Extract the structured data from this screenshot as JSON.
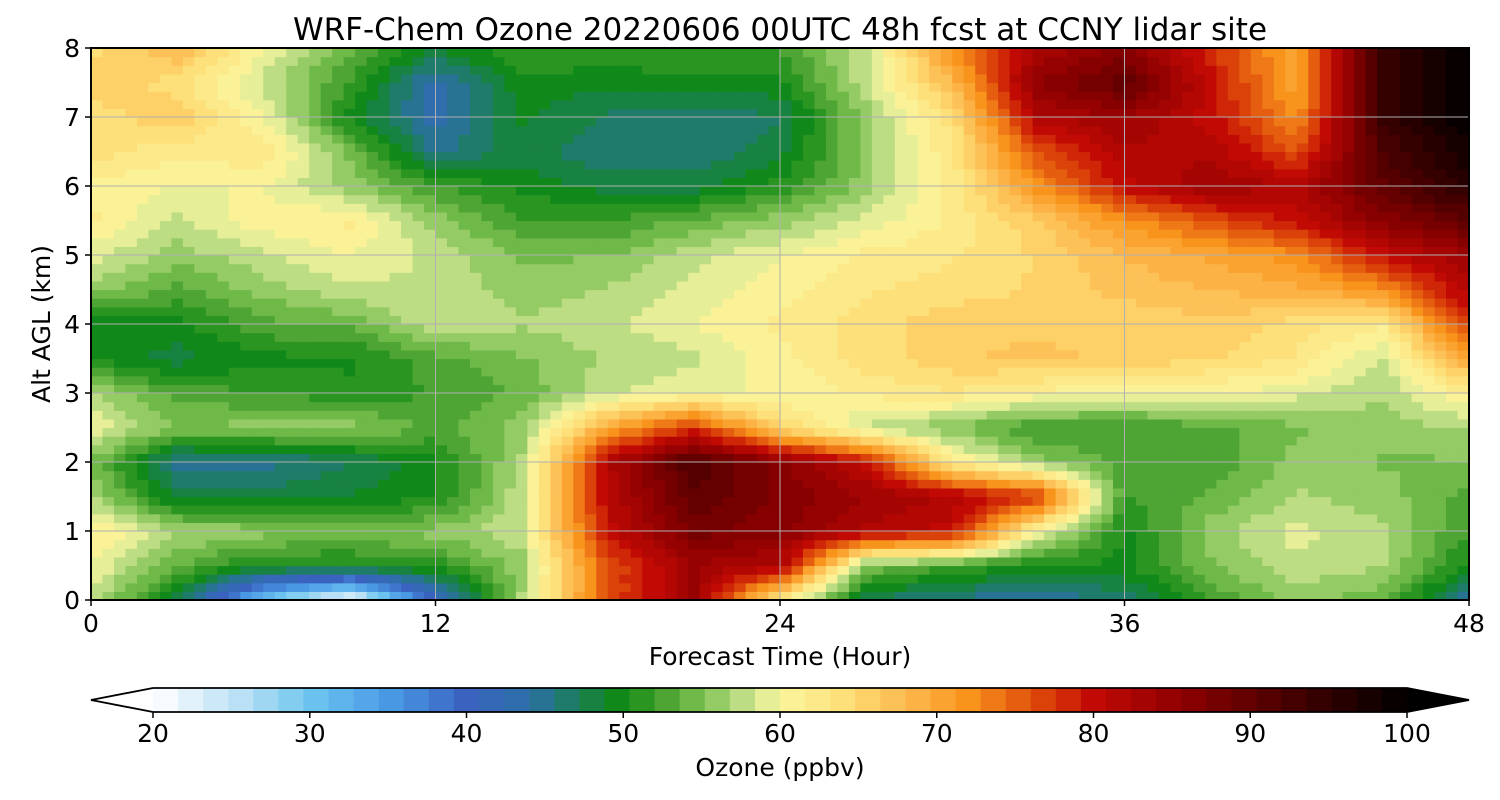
{
  "chart_data": {
    "type": "heatmap",
    "title": "WRF-Chem Ozone  20220606 00UTC 48h fcst at CCNY lidar site",
    "xlabel": "Forecast Time (Hour)",
    "ylabel": "Alt AGL (km)",
    "xlim": [
      0,
      48
    ],
    "ylim": [
      0,
      8
    ],
    "xticks": [
      0,
      12,
      24,
      36,
      48
    ],
    "yticks": [
      0,
      1,
      2,
      3,
      4,
      5,
      6,
      7,
      8
    ],
    "grid": true,
    "x": [
      0,
      3,
      6,
      9,
      12,
      15,
      18,
      21,
      24,
      27,
      30,
      33,
      36,
      39,
      42,
      45,
      48
    ],
    "y": [
      0,
      0.5,
      1,
      1.5,
      2,
      2.5,
      3,
      3.5,
      4,
      4.5,
      5,
      5.5,
      6,
      6.5,
      7,
      7.5,
      8
    ],
    "z": [
      [
        58,
        48,
        30,
        20,
        40,
        57,
        76,
        84,
        62,
        47,
        45,
        44,
        46,
        52,
        56,
        54,
        44
      ],
      [
        60,
        54,
        50,
        50,
        51,
        56,
        76,
        84,
        82,
        55,
        52,
        50,
        50,
        55,
        58,
        57,
        50
      ],
      [
        62,
        57,
        56,
        55,
        56,
        58,
        80,
        88,
        86,
        82,
        80,
        60,
        50,
        56,
        59,
        57,
        52
      ],
      [
        57,
        48,
        48,
        49,
        50,
        58,
        81,
        90,
        87,
        84,
        82,
        78,
        52,
        54,
        57,
        56,
        53
      ],
      [
        55,
        45,
        45,
        47,
        50,
        57,
        82,
        92,
        86,
        80,
        62,
        56,
        53,
        52,
        56,
        55,
        55
      ],
      [
        60,
        55,
        56,
        56,
        53,
        56,
        70,
        78,
        65,
        58,
        55,
        52,
        52,
        53,
        55,
        56,
        57
      ],
      [
        57,
        53,
        52,
        51,
        52,
        54,
        58,
        60,
        60,
        62,
        63,
        61,
        60,
        60,
        59,
        57,
        62
      ],
      [
        50,
        48,
        50,
        50,
        53,
        55,
        57,
        58,
        61,
        64,
        66,
        67,
        66,
        65,
        63,
        58,
        70
      ],
      [
        49,
        50,
        53,
        54,
        58,
        57,
        58,
        60,
        62,
        64,
        66,
        66,
        65,
        66,
        64,
        62,
        78
      ],
      [
        56,
        53,
        56,
        58,
        58,
        56,
        57,
        59,
        61,
        63,
        64,
        65,
        67,
        68,
        69,
        72,
        82
      ],
      [
        59,
        56,
        58,
        60,
        58,
        55,
        55,
        58,
        60,
        62,
        63,
        65,
        68,
        70,
        72,
        80,
        84
      ],
      [
        62,
        58,
        61,
        62,
        56,
        52,
        52,
        54,
        56,
        59,
        62,
        66,
        72,
        76,
        80,
        86,
        90
      ],
      [
        61,
        60,
        60,
        56,
        52,
        50,
        48,
        48,
        51,
        56,
        62,
        72,
        80,
        84,
        82,
        90,
        96
      ],
      [
        64,
        62,
        63,
        55,
        45,
        48,
        46,
        46,
        48,
        56,
        63,
        76,
        82,
        82,
        76,
        92,
        98
      ],
      [
        64,
        66,
        60,
        50,
        43,
        49,
        47,
        46,
        47,
        56,
        64,
        82,
        84,
        80,
        72,
        94,
        100
      ],
      [
        66,
        64,
        58,
        52,
        43,
        50,
        49,
        50,
        50,
        58,
        68,
        86,
        90,
        80,
        70,
        94,
        100
      ],
      [
        64,
        68,
        60,
        54,
        49,
        52,
        52,
        52,
        52,
        58,
        72,
        82,
        86,
        78,
        70,
        94,
        100
      ]
    ],
    "colorbar": {
      "label": "Ozone  (ppbv)",
      "min": 20,
      "max": 100,
      "ticks": [
        20,
        30,
        40,
        50,
        60,
        70,
        80,
        90,
        100
      ],
      "extend": "both"
    },
    "colormap": [
      [
        20,
        "#ffffff"
      ],
      [
        26,
        "#b4def4"
      ],
      [
        30,
        "#6ec6f0"
      ],
      [
        35,
        "#4a9ae6"
      ],
      [
        40,
        "#3a63c0"
      ],
      [
        44,
        "#2d6fa8"
      ],
      [
        47,
        "#1b7e5a"
      ],
      [
        50,
        "#0e8b10"
      ],
      [
        52,
        "#3d9b2a"
      ],
      [
        55,
        "#7cc051"
      ],
      [
        58,
        "#c6e18b"
      ],
      [
        60,
        "#fbf7a0"
      ],
      [
        64,
        "#fde07a"
      ],
      [
        68,
        "#fdba4e"
      ],
      [
        72,
        "#f8941c"
      ],
      [
        76,
        "#e0500c"
      ],
      [
        80,
        "#c20a04"
      ],
      [
        86,
        "#8a0000"
      ],
      [
        92,
        "#4c0000"
      ],
      [
        100,
        "#000000"
      ]
    ]
  }
}
